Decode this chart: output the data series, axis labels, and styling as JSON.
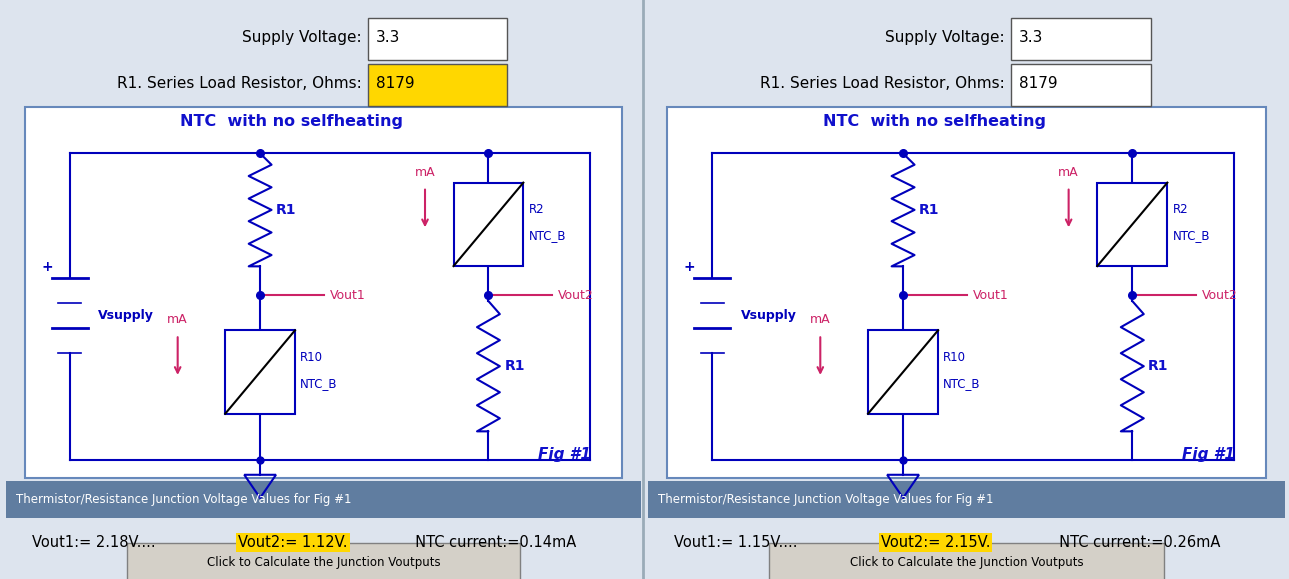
{
  "fig_width": 12.89,
  "fig_height": 5.79,
  "bg_color": "#dde4ee",
  "panels": [
    {
      "supply_voltage": "3.3",
      "r1_value": "8179",
      "r1_highlight": true,
      "circuit_title": "NTC  with no selfheating",
      "vout1_text": "Vout1:= 2.18V....  ",
      "vout2_highlighted": "Vout2:= 1.12V.",
      "ntc_current": "  NTC current:=0.14mA",
      "status_bg": "#607da0",
      "status_text": "Thermistor/Resistance Junction Voltage Values for Fig #1"
    },
    {
      "supply_voltage": "3.3",
      "r1_value": "8179",
      "r1_highlight": false,
      "circuit_title": "NTC  with no selfheating",
      "vout1_text": "Vout1:= 1.15V....  ",
      "vout2_highlighted": "Vout2:= 2.15V.",
      "ntc_current": "  NTC current:=0.26mA",
      "status_bg": "#607da0",
      "status_text": "Thermistor/Resistance Junction Voltage Values for Fig #1"
    }
  ],
  "colors": {
    "blue_dark": "#1010cc",
    "red": "#cc2266",
    "wire": "#0000bb",
    "highlight_yellow": "#FFD700",
    "button_bg": "#d4d0c8",
    "button_border": "#808080",
    "circuit_border": "#6688bb"
  }
}
